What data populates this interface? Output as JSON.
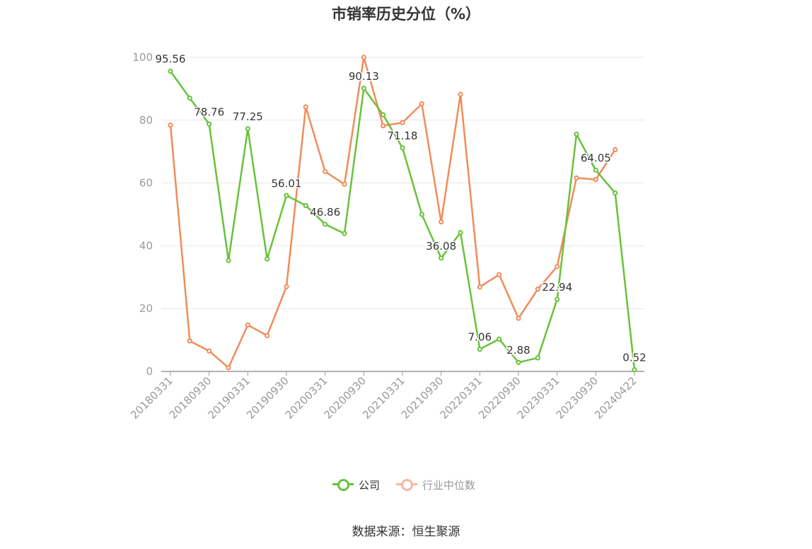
{
  "title": "市销率历史分位（%）",
  "source": "数据来源：恒生聚源",
  "legend": {
    "company": "公司",
    "industry": "行业中位数"
  },
  "colors": {
    "company": "#67c23a",
    "industry": "#f08c5a",
    "industry_legend": "#f5b7a0",
    "grid": "#e6e6e6",
    "axis": "#999999",
    "tick_text": "#999999",
    "label_text": "#333333"
  },
  "chart_data": {
    "type": "line",
    "title": "市销率历史分位（%）",
    "ylim": [
      0,
      100
    ],
    "y_ticks": [
      0,
      20,
      40,
      60,
      80,
      100
    ],
    "x_tick_labels": [
      "20180331",
      "20180930",
      "20190331",
      "20190930",
      "20200331",
      "20200930",
      "20210331",
      "20210930",
      "20220331",
      "20220930",
      "20230331",
      "20230930",
      "20240422"
    ],
    "x": [
      "20180331",
      "20180630",
      "20180930",
      "20181231",
      "20190331",
      "20190630",
      "20190930",
      "20191231",
      "20200331",
      "20200630",
      "20200930",
      "20201231",
      "20210331",
      "20210630",
      "20210930",
      "20211231",
      "20220331",
      "20220630",
      "20220930",
      "20221231",
      "20230331",
      "20230630",
      "20230930",
      "20231231",
      "20240422"
    ],
    "grid": true,
    "legend_position": "bottom",
    "series": [
      {
        "name": "公司",
        "values": [
          95.56,
          87.0,
          78.76,
          35.3,
          77.25,
          35.8,
          56.01,
          52.8,
          46.86,
          43.9,
          90.13,
          81.7,
          71.18,
          50.0,
          36.08,
          44.2,
          7.06,
          10.3,
          2.88,
          4.3,
          22.94,
          75.5,
          64.05,
          56.8,
          0.52
        ],
        "labels": [
          "95.56",
          "",
          "78.76",
          "",
          "77.25",
          "",
          "56.01",
          "",
          "46.86",
          "",
          "90.13",
          "",
          "71.18",
          "",
          "36.08",
          "",
          "7.06",
          "",
          "2.88",
          "",
          "22.94",
          "",
          "64.05",
          "",
          "0.52"
        ]
      },
      {
        "name": "行业中位数",
        "values": [
          78.4,
          9.7,
          6.5,
          1.2,
          14.8,
          11.4,
          27.0,
          84.2,
          63.6,
          59.6,
          100.0,
          78.2,
          79.2,
          85.2,
          47.6,
          88.2,
          26.9,
          30.8,
          16.9,
          26.2,
          33.4,
          61.6,
          61.1,
          70.6,
          null
        ]
      }
    ]
  }
}
